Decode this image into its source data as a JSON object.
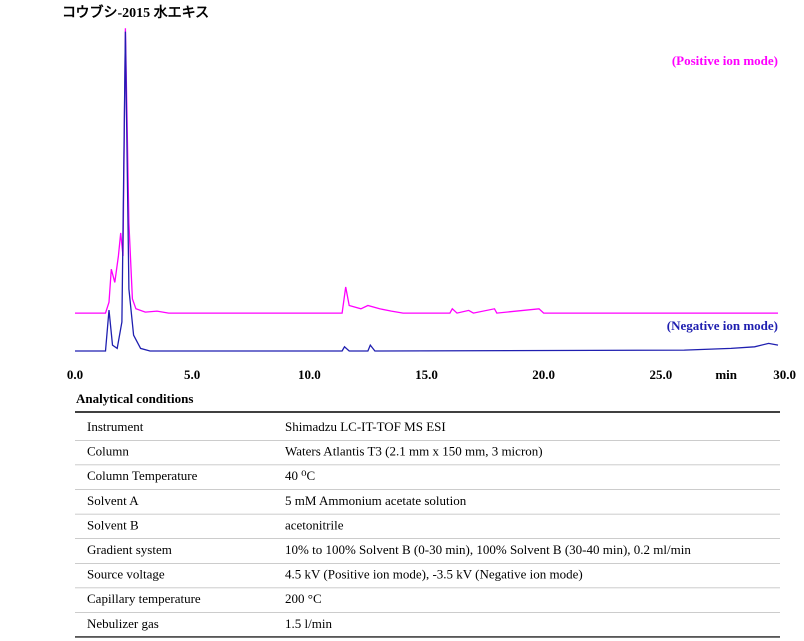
{
  "chart_data": {
    "type": "line",
    "title": "コウブシ-2015 水エキス",
    "x_label": "min",
    "xlim": [
      0,
      30
    ],
    "xticks": [
      {
        "value": 0,
        "label": "0.0"
      },
      {
        "value": 5,
        "label": "5.0"
      },
      {
        "value": 10,
        "label": "10.0"
      },
      {
        "value": 15,
        "label": "15.0"
      },
      {
        "value": 20,
        "label": "20.0"
      },
      {
        "value": 25,
        "label": "25.0"
      },
      {
        "value": 30,
        "label": "30.0"
      }
    ],
    "ylim": [
      0,
      100
    ],
    "series": [
      {
        "name": "(Positive ion mode)",
        "color": "#ff00ff",
        "x": [
          0,
          1.3,
          1.45,
          1.55,
          1.7,
          1.85,
          1.95,
          2.05,
          2.15,
          2.3,
          2.45,
          2.6,
          3.0,
          3.5,
          4.0,
          11.4,
          11.55,
          11.7,
          12.2,
          12.5,
          13.0,
          13.5,
          14.0,
          16.0,
          16.1,
          16.3,
          16.8,
          17.0,
          17.9,
          18.0,
          19.8,
          20.0,
          30.0
        ],
        "values": [
          12.7,
          12.7,
          16,
          26,
          22,
          30,
          37,
          30,
          99,
          40,
          17,
          14,
          13,
          13.3,
          12.7,
          12.7,
          20.6,
          15,
          14,
          15,
          14,
          13.3,
          12.7,
          12.7,
          14,
          12.7,
          13.5,
          12.7,
          14,
          12.7,
          14,
          12.7,
          12.7
        ]
      },
      {
        "name": "(Negative ion mode)",
        "color": "#1f1fb0",
        "x": [
          0,
          1.3,
          1.45,
          1.6,
          1.8,
          2.0,
          2.15,
          2.3,
          2.5,
          2.8,
          3.2,
          11.4,
          11.5,
          11.7,
          12.5,
          12.6,
          12.8,
          26.0,
          28.0,
          29.0,
          29.6,
          30.0
        ],
        "values": [
          1.2,
          1.2,
          13.6,
          3,
          2,
          10,
          98,
          20,
          6,
          2,
          1.2,
          1.2,
          2.5,
          1.2,
          1.2,
          3,
          1.2,
          1.5,
          2,
          2.5,
          3.5,
          3
        ]
      }
    ]
  },
  "table": {
    "title": "Analytical conditions",
    "rows": [
      [
        "Instrument",
        "Shimadzu LC-IT-TOF MS ESI"
      ],
      [
        "Column",
        "Waters Atlantis T3 (2.1 mm x 150 mm, 3 micron)"
      ],
      [
        "Column Temperature",
        "40 ⁰C"
      ],
      [
        "Solvent A",
        "5 mM Ammonium acetate solution"
      ],
      [
        "Solvent B",
        "acetonitrile"
      ],
      [
        "Gradient system",
        "10% to 100% Solvent B (0-30 min), 100% Solvent B (30-40 min), 0.2 ml/min"
      ],
      [
        "Source voltage",
        "4.5 kV (Positive ion mode), -3.5 kV (Negative ion mode)"
      ],
      [
        "Capillary temperature",
        "200 °C"
      ],
      [
        "Nebulizer gas",
        "1.5 l/min"
      ]
    ]
  }
}
